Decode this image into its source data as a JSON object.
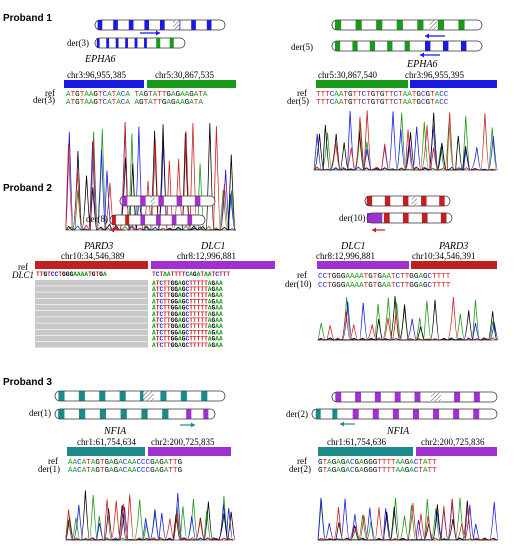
{
  "colors": {
    "blue": "#1a1ae0",
    "green": "#1a9a1a",
    "red": "#c22020",
    "purple": "#a030d0",
    "teal": "#1a8a8a",
    "gray": "#c8c8c8"
  },
  "proband1": {
    "title": "Proband 1",
    "left": {
      "der": "der(3)",
      "gene": "EPHA6",
      "coordA": "chr3:96,955,385",
      "coordB": "chr5:30,867,535",
      "ref_label": "ref",
      "der_label": "der(3)",
      "ref_seq": "ATGTAAGTCATACA TAGTATTGAGAAGATA",
      "der_seq": "ATGTAAGTCATACA AGTATTGAGAAGATA"
    },
    "right": {
      "der": "der(5)",
      "gene": "EPHA6",
      "coordA": "chr5:30,867,540",
      "coordB": "chr3:96,955,395",
      "ref_label": "ref",
      "der_label": "der(5)",
      "ref_seq": "TTTCAATGTTCTGTGTTCTAATGCGTACC",
      "der_seq": "TTTCAATGTTCTGTGTTCTAATGCGTACC"
    }
  },
  "proband2": {
    "title": "Proband 2",
    "left": {
      "der": "der(8)",
      "geneA": "PARD3",
      "geneB": "DLC1",
      "coordA": "chr10:34,546,389",
      "coordB": "chr8:12,996,881",
      "ref_label": "ref",
      "dlc_label": "DLC1",
      "ref_seq_a": "TTGTCCTGGGAAAATGTGA",
      "ref_seq_b": "TCTAATTTTCAGATAATCTTT",
      "read_seq": "ATCTTGGAGCTTTTTAGAA"
    },
    "right": {
      "der": "der(10)",
      "geneA": "DLC1",
      "geneB": "PARD3",
      "coordA": "chr8:12,996,881",
      "coordB": "chr10:34,546,391",
      "ref_label": "ref",
      "der_label": "der(10)",
      "ref_seq": "CCTGGGAAAATGTGAATCTTGGAGCTTTT",
      "der_seq": "CCTGGGAAAATGTGAATCTTGGAGCTTTT"
    }
  },
  "proband3": {
    "title": "Proband 3",
    "left": {
      "der": "der(1)",
      "gene": "NFIA",
      "coordA": "chr1:61,754,634",
      "coordB": "chr2:200,725,835",
      "ref_label": "ref",
      "der_label": "der(1)",
      "ref_seq": "AACATAGTGAGACAACCCGAGATTG",
      "der_seq": "AACATAGTGAGACAACCCGAGATTG"
    },
    "right": {
      "der": "der(2)",
      "gene": "NFIA",
      "coordA": "chr1:61,754,636",
      "coordB": "chr2:200,725,836",
      "ref_label": "ref",
      "der_label": "der(2)",
      "ref_seq": "GTAGAGACGAGGGTTTTAAGACTATT",
      "der_seq": "GTAGAGACGAGGGTTTTAAGACTATT"
    }
  }
}
